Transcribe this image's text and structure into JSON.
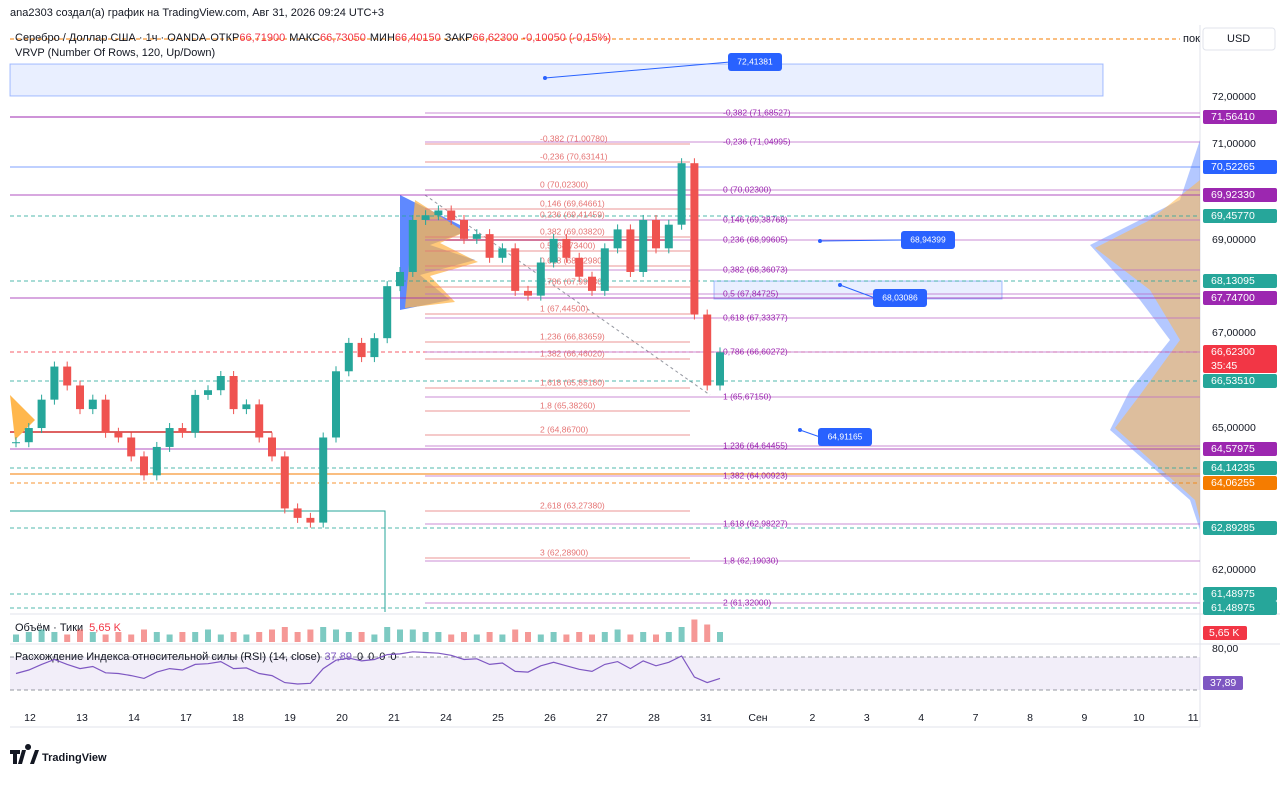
{
  "header": {
    "author_line": "ana2303 создал(а) график на TradingView.com, Авг 31, 2026 09:24 UTC+3",
    "symbol": "Серебро / Доллар США · 1ч · OANDA",
    "open_label": "ОТКР",
    "open": "66,71900",
    "high_label": "МАКС",
    "high": "66,73050",
    "low_label": "МИН",
    "low": "66,40150",
    "close_label": "ЗАКР",
    "close": "66,62300",
    "change": "-0,10050 (-0,15%)",
    "indicator": "VRVP (Number Of Rows, 120, Up/Down)"
  },
  "currency": "USD",
  "buy_label": "пок",
  "price_axis": {
    "labels": [
      "72,00000",
      "71,00000",
      "69,00000",
      "67,00000",
      "65,00000",
      "62,00000"
    ],
    "badges": [
      {
        "label": "71,56410",
        "color": "#9c27b0"
      },
      {
        "label": "70,52265",
        "color": "#2962ff"
      },
      {
        "label": "69,92330",
        "color": "#9c27b0"
      },
      {
        "label": "69,45770",
        "color": "#26a69a"
      },
      {
        "label": "68,13095",
        "color": "#26a69a"
      },
      {
        "label": "67,74700",
        "color": "#9c27b0"
      },
      {
        "label": "66,62300",
        "color": "#f23645"
      },
      {
        "label": "66,53510",
        "color": "#26a69a"
      },
      {
        "label": "64,57975",
        "color": "#9c27b0"
      },
      {
        "label": "64,14235",
        "color": "#26a69a"
      },
      {
        "label": "64,06255",
        "color": "#f57c00"
      },
      {
        "label": "62,89285",
        "color": "#26a69a"
      },
      {
        "label": "61,48975",
        "color": "#26a69a"
      },
      {
        "label": "61,48975",
        "color": "#26a69a"
      }
    ],
    "countdown": "35:45"
  },
  "callouts": [
    "72,41381",
    "68,94399",
    "68,03086",
    "64,91165"
  ],
  "fib_left": [
    "-0,382 (71,00780)",
    "-0,236 (70,63141)",
    "0 (70,02300)",
    "0,146 (69,64661)",
    "0,236 (69,41459)",
    "0,382 (69,03820)",
    "0,5 (68,73400)",
    "0,618 (68,42980)",
    "0,786 (67,99680)",
    "1 (67,44500)",
    "1,236 (66,83659)",
    "1,382 (66,46020)",
    "1,618 (65,85180)",
    "1,8 (65,38260)",
    "2 (64,86700)",
    "2,618 (63,27380)",
    "3 (62,28900)"
  ],
  "fib_right": [
    "-0,382 (71,68527)",
    "-0,236 (71,04995)",
    "0 (70,02300)",
    "0,146 (69,38768)",
    "0,236 (68,99605)",
    "0,382 (68,36073)",
    "0,5 (67,84725)",
    "0,618 (67,33377)",
    "0,786 (66,60272)",
    "1 (65,67150)",
    "1,236 (64,64455)",
    "1,382 (64,00923)",
    "1,618 (62,98227)",
    "1,8 (62,19030)",
    "2 (61,32000)"
  ],
  "date_axis": [
    "12",
    "13",
    "14",
    "17",
    "18",
    "19",
    "20",
    "21",
    "24",
    "25",
    "26",
    "27",
    "28",
    "31",
    "Сен",
    "2",
    "3",
    "4",
    "7",
    "8",
    "9",
    "10",
    "11"
  ],
  "price": {
    "closes": [
      64.7,
      65.0,
      65.6,
      66.3,
      65.9,
      65.4,
      65.6,
      64.9,
      64.8,
      64.4,
      64.0,
      64.6,
      65.0,
      64.9,
      65.7,
      65.8,
      66.1,
      65.4,
      65.5,
      64.8,
      64.4,
      63.3,
      63.1,
      63.0,
      64.8,
      66.2,
      66.8,
      66.5,
      66.9,
      68.0,
      68.3,
      69.4,
      69.5,
      69.6,
      69.4,
      69.0,
      69.1,
      68.6,
      68.8,
      67.9,
      67.8,
      68.5,
      69.0,
      68.6,
      68.2,
      67.9,
      68.8,
      69.2,
      68.3,
      69.4,
      68.8,
      69.3,
      70.6,
      67.4,
      65.9,
      66.6
    ]
  },
  "volume_pane": {
    "title": "Объём · Тики",
    "value": "5,65 K",
    "values": [
      3,
      4,
      5,
      4,
      3,
      5,
      4,
      3,
      4,
      3,
      5,
      4,
      3,
      4,
      4,
      5,
      3,
      4,
      3,
      4,
      5,
      6,
      4,
      5,
      6,
      5,
      4,
      4,
      3,
      6,
      5,
      5,
      4,
      4,
      3,
      4,
      3,
      4,
      3,
      5,
      4,
      3,
      4,
      3,
      4,
      3,
      4,
      5,
      3,
      4,
      3,
      4,
      6,
      9,
      7,
      4
    ]
  },
  "rsi_pane": {
    "title": "Расхождение Индекса относительной силы (RSI) (14, close)",
    "value": "37,89",
    "extras": [
      "0",
      "0",
      "0",
      "0"
    ],
    "level": "80,00",
    "values": [
      45,
      50,
      58,
      65,
      58,
      52,
      55,
      46,
      45,
      42,
      38,
      47,
      52,
      50,
      58,
      59,
      62,
      52,
      53,
      45,
      42,
      32,
      30,
      31,
      52,
      64,
      67,
      63,
      65,
      72,
      73,
      76,
      75,
      74,
      71,
      65,
      66,
      58,
      60,
      48,
      47,
      56,
      61,
      56,
      51,
      48,
      58,
      62,
      52,
      63,
      56,
      61,
      70,
      40,
      32,
      38
    ]
  },
  "logo": "TradingView"
}
